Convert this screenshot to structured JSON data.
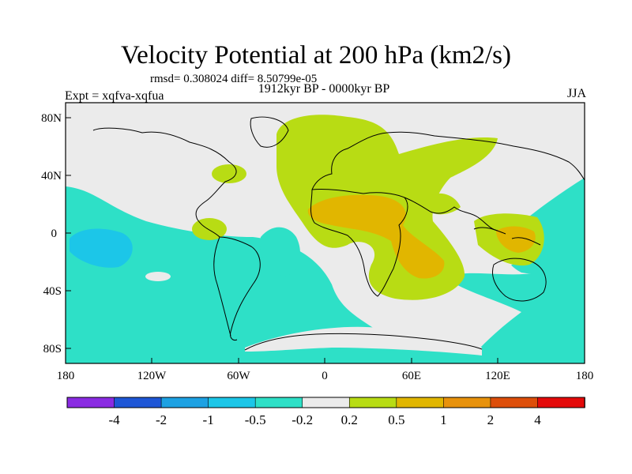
{
  "title": "Velocity Potential at 200 hPa (km2/s)",
  "stats_line": "rmsd= 0.308024 diff= 8.50799e-05",
  "left_label": "Expt = xqfva-xqfua",
  "center_label": "1912kyr BP - 0000kyr BP",
  "right_label": "JJA",
  "lat_ticks": [
    "80N",
    "40N",
    "0",
    "40S",
    "80S"
  ],
  "lon_ticks": [
    "180",
    "120W",
    "60W",
    "0",
    "60E",
    "120E",
    "180"
  ],
  "colorbar": {
    "labels": [
      "-4",
      "-2",
      "-1",
      "-0.5",
      "-0.2",
      "0.2",
      "0.5",
      "1",
      "2",
      "4"
    ],
    "colors": [
      "#8a2be2",
      "#1e56d6",
      "#1da1e3",
      "#1cc6e8",
      "#2ee0c7",
      "#ebebeb",
      "#b8dc14",
      "#e1b600",
      "#e8920c",
      "#dd4e0a",
      "#e40a0a"
    ]
  },
  "colors": {
    "neutral": "#ebebeb",
    "teal": "#2ee0c7",
    "lightblue": "#1cc6e8",
    "olive": "#b8dc14",
    "orange": "#e1b600"
  }
}
